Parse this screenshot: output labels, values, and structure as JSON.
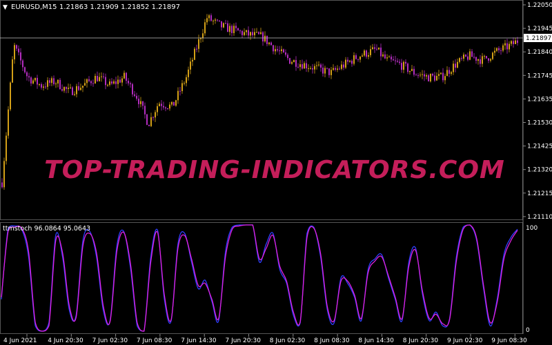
{
  "header": {
    "arrow": "▼",
    "symbol": "EURUSD,M15",
    "ohlc": "1.21863 1.21909 1.21852 1.21897"
  },
  "price_axis": {
    "ticks": [
      "1.22050",
      "1.21945",
      "1.21840",
      "1.21745",
      "1.21635",
      "1.21530",
      "1.21425",
      "1.21320",
      "1.21215",
      "1.21110"
    ],
    "current_price": "1.21897"
  },
  "indicator": {
    "label": "ttmstoch 96.0864 95.0643",
    "max_label": "100",
    "min_label": "0"
  },
  "time_axis": {
    "ticks": [
      "4 Jun 2021",
      "4 Jun 20:30",
      "7 Jun 02:30",
      "7 Jun 08:30",
      "7 Jun 14:30",
      "7 Jun 20:30",
      "8 Jun 02:30",
      "8 Jun 08:30",
      "8 Jun 14:30",
      "8 Jun 20:30",
      "9 Jun 02:30",
      "9 Jun 08:30"
    ]
  },
  "watermark": "TOP-TRADING-INDICATORS.COM",
  "colors": {
    "background": "#000000",
    "bull_candle": "#d4a017",
    "bear_candle": "#b32dbf",
    "stoch_fast": "#2f3fff",
    "stoch_slow": "#e020e0",
    "watermark": "#c41e5a",
    "grid_line": "#c0c0c0",
    "text": "#ffffff"
  },
  "chart_data": [
    {
      "type": "candlestick",
      "series": [
        {
          "name": "EURUSD,M15",
          "x": [
            0,
            20,
            40,
            60,
            80,
            100,
            120,
            140,
            160,
            180,
            200,
            215,
            230,
            250,
            270,
            285,
            300,
            320,
            340,
            360,
            380,
            400,
            420,
            440,
            460,
            480,
            500,
            520,
            545,
            560,
            580,
            600,
            620,
            640,
            660,
            680,
            700,
            720,
            740,
            755
          ],
          "values": [
            1.2111,
            1.2187,
            1.2172,
            1.2168,
            1.217,
            1.2165,
            1.2168,
            1.2172,
            1.2168,
            1.2172,
            1.2162,
            1.215,
            1.216,
            1.2158,
            1.2172,
            1.2186,
            1.22,
            1.2196,
            1.2194,
            1.2192,
            1.2191,
            1.2185,
            1.218,
            1.2178,
            1.2176,
            1.2174,
            1.2178,
            1.2182,
            1.2185,
            1.218,
            1.2178,
            1.2174,
            1.2172,
            1.2172,
            1.2178,
            1.2182,
            1.218,
            1.2184,
            1.2187,
            1.219
          ]
        }
      ]
    },
    {
      "type": "line",
      "title": "ttmstoch",
      "ylim": [
        0,
        100
      ],
      "series": [
        {
          "name": "ttmstoch",
          "values": [
            30,
            97,
            99,
            96,
            70,
            5,
            0,
            8,
            90,
            70,
            20,
            15,
            85,
            94,
            70,
            20,
            10,
            80,
            94,
            60,
            5,
            0,
            70,
            95,
            30,
            10,
            82,
            92,
            65,
            40,
            48,
            28,
            10,
            75,
            98,
            100,
            100,
            100,
            65,
            82,
            92,
            58,
            45,
            15,
            8,
            92,
            98,
            70,
            20,
            8,
            50,
            45,
            32,
            10,
            58,
            68,
            72,
            50,
            30,
            10,
            65,
            78,
            35,
            10,
            18,
            5,
            12,
            70,
            98,
            100,
            85,
            40,
            5,
            30,
            72,
            88,
            96
          ]
        },
        {
          "name": "ttmstoch",
          "values": [
            32,
            94,
            98,
            97,
            75,
            8,
            0,
            5,
            85,
            74,
            24,
            13,
            80,
            92,
            74,
            24,
            9,
            75,
            93,
            64,
            8,
            0,
            65,
            93,
            34,
            11,
            78,
            90,
            68,
            43,
            45,
            30,
            12,
            70,
            96,
            99,
            100,
            100,
            68,
            78,
            90,
            61,
            47,
            18,
            9,
            88,
            97,
            73,
            23,
            10,
            47,
            47,
            34,
            12,
            55,
            66,
            70,
            52,
            32,
            12,
            61,
            76,
            38,
            12,
            16,
            7,
            11,
            66,
            96,
            100,
            87,
            43,
            8,
            27,
            68,
            85,
            95
          ]
        }
      ]
    }
  ]
}
